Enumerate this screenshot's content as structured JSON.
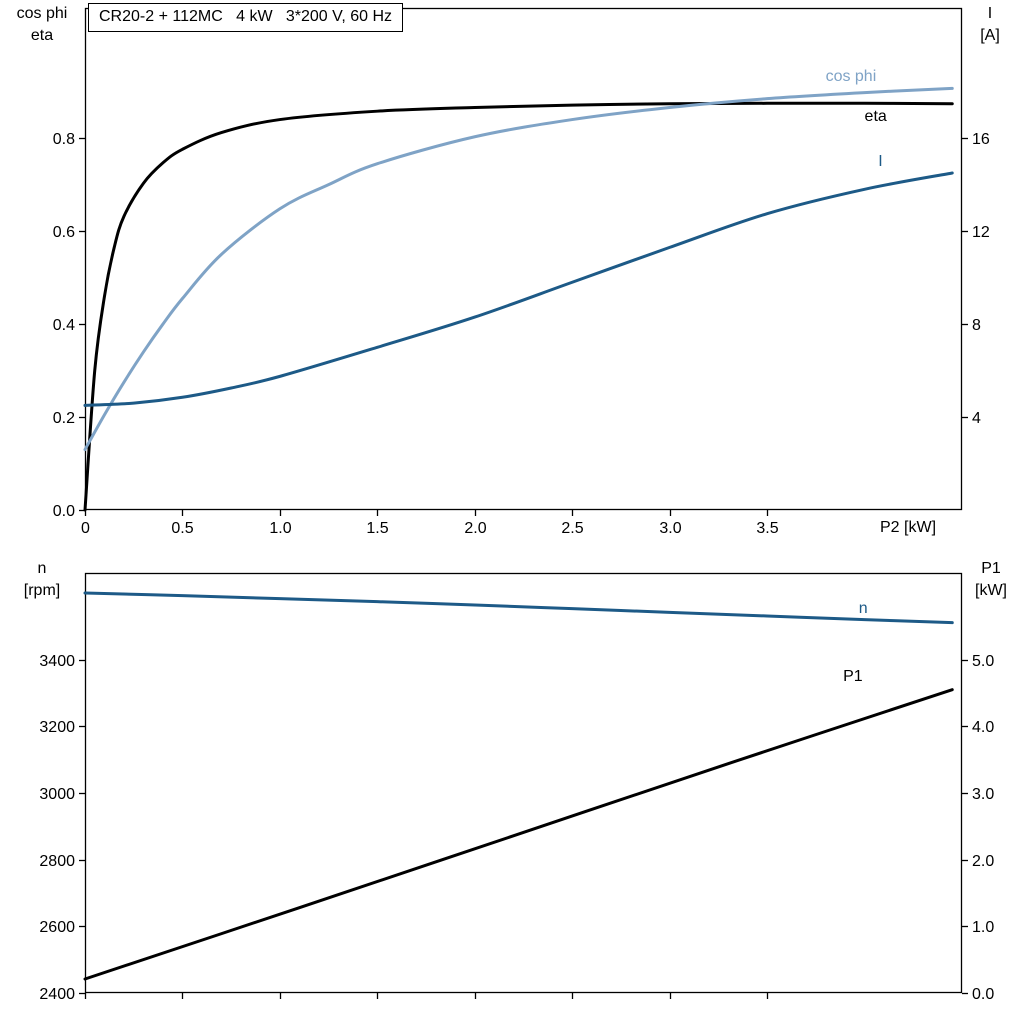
{
  "title_box": "CR20-2 + 112MC   4 kW   3*200 V, 60 Hz",
  "labels": {
    "top_left_1": "cos phi",
    "top_left_2": "eta",
    "top_right_1": "I",
    "top_right_2": "[A]",
    "x_axis": "P2 [kW]",
    "bottom_left_1": "n",
    "bottom_left_2": "[rpm]",
    "bottom_right_1": "P1",
    "bottom_right_2": "[kW]"
  },
  "colors": {
    "black": "#000000",
    "dark_blue": "#1d5a87",
    "light_blue": "#7fa3c6",
    "frame": "#000000"
  },
  "chart_data": [
    {
      "type": "line",
      "title": "CR20-2 + 112MC   4 kW   3*200 V, 60 Hz",
      "grid": false,
      "legend_position": "inline-curve-labels",
      "axes": {
        "x": {
          "label": "P2 [kW]",
          "min": 0,
          "max": 4.5,
          "ticks": [
            0,
            0.5,
            1.0,
            1.5,
            2.0,
            2.5,
            3.0,
            3.5
          ],
          "tick_labels": [
            "0",
            "0.5",
            "1.0",
            "1.5",
            "2.0",
            "2.5",
            "3.0",
            "3.5"
          ]
        },
        "y_left": {
          "label": "cos phi / eta",
          "min": 0,
          "max": 1.08,
          "ticks": [
            0,
            0.2,
            0.4,
            0.6,
            0.8
          ],
          "tick_labels": [
            "0.0",
            "0.2",
            "0.4",
            "0.6",
            "0.8"
          ]
        },
        "y_right": {
          "label": "I [A]",
          "min": 0,
          "max": 21.6,
          "ticks": [
            4,
            8,
            12,
            16
          ],
          "tick_labels": [
            "4",
            "8",
            "12",
            "16"
          ]
        }
      },
      "series": [
        {
          "name": "eta",
          "axis": "left",
          "color_key": "black",
          "points": [
            [
              0,
              0
            ],
            [
              0.05,
              0.3
            ],
            [
              0.1,
              0.46
            ],
            [
              0.15,
              0.565
            ],
            [
              0.2,
              0.632
            ],
            [
              0.3,
              0.703
            ],
            [
              0.4,
              0.747
            ],
            [
              0.5,
              0.776
            ],
            [
              0.7,
              0.812
            ],
            [
              1.0,
              0.84
            ],
            [
              1.5,
              0.858
            ],
            [
              2.0,
              0.866
            ],
            [
              2.5,
              0.871
            ],
            [
              3.0,
              0.874
            ],
            [
              3.5,
              0.875
            ],
            [
              4.0,
              0.875
            ],
            [
              4.45,
              0.874
            ]
          ]
        },
        {
          "name": "cos phi",
          "axis": "left",
          "color_key": "light_blue",
          "points": [
            [
              0,
              0.13
            ],
            [
              0.1,
              0.205
            ],
            [
              0.2,
              0.275
            ],
            [
              0.3,
              0.34
            ],
            [
              0.4,
              0.4
            ],
            [
              0.5,
              0.455
            ],
            [
              0.7,
              0.55
            ],
            [
              1.0,
              0.648
            ],
            [
              1.25,
              0.7
            ],
            [
              1.5,
              0.745
            ],
            [
              2.0,
              0.803
            ],
            [
              2.5,
              0.84
            ],
            [
              3.0,
              0.866
            ],
            [
              3.5,
              0.885
            ],
            [
              4.0,
              0.898
            ],
            [
              4.45,
              0.907
            ]
          ]
        },
        {
          "name": "I",
          "axis": "right",
          "color_key": "dark_blue",
          "points": [
            [
              0,
              4.5
            ],
            [
              0.25,
              4.6
            ],
            [
              0.5,
              4.85
            ],
            [
              0.75,
              5.25
            ],
            [
              1.0,
              5.75
            ],
            [
              1.5,
              7.0
            ],
            [
              2.0,
              8.3
            ],
            [
              2.5,
              9.8
            ],
            [
              3.0,
              11.3
            ],
            [
              3.5,
              12.75
            ],
            [
              4.0,
              13.8
            ],
            [
              4.45,
              14.5
            ]
          ]
        }
      ],
      "curve_labels": [
        {
          "text": "cos phi",
          "x": 3.8,
          "y": 0.923,
          "axis": "left",
          "color_key": "light_blue"
        },
        {
          "text": "eta",
          "x": 4.0,
          "y": 0.837,
          "axis": "left",
          "color_key": "black"
        },
        {
          "text": "I",
          "x": 4.07,
          "y": 14.8,
          "axis": "right",
          "color_key": "dark_blue"
        }
      ]
    },
    {
      "type": "line",
      "title": "",
      "grid": false,
      "legend_position": "inline-curve-labels",
      "axes": {
        "x": {
          "label": "",
          "min": 0,
          "max": 4.5,
          "ticks": [
            0,
            0.5,
            1.0,
            1.5,
            2.0,
            2.5,
            3.0,
            3.5
          ],
          "tick_labels": []
        },
        "y_left": {
          "label": "n [rpm]",
          "min": 2400,
          "max": 3660,
          "ticks": [
            2400,
            2600,
            2800,
            3000,
            3200,
            3400
          ],
          "tick_labels": [
            "2400",
            "2600",
            "2800",
            "3000",
            "3200",
            "3400"
          ]
        },
        "y_right": {
          "label": "P1 [kW]",
          "min": 0,
          "max": 6.3,
          "ticks": [
            0,
            1.0,
            2.0,
            3.0,
            4.0,
            5.0
          ],
          "tick_labels": [
            "0.0",
            "1.0",
            "2.0",
            "3.0",
            "4.0",
            "5.0"
          ]
        }
      },
      "series": [
        {
          "name": "n",
          "axis": "left",
          "color_key": "dark_blue",
          "points": [
            [
              0,
              3600
            ],
            [
              0.5,
              3592
            ],
            [
              1.0,
              3583
            ],
            [
              1.5,
              3574
            ],
            [
              2.0,
              3564
            ],
            [
              2.5,
              3553
            ],
            [
              3.0,
              3542
            ],
            [
              3.5,
              3531
            ],
            [
              4.0,
              3520
            ],
            [
              4.45,
              3511
            ]
          ]
        },
        {
          "name": "P1",
          "axis": "right",
          "color_key": "black",
          "points": [
            [
              0,
              0.21
            ],
            [
              1.1,
              1.28
            ],
            [
              2.2,
              2.36
            ],
            [
              3.3,
              3.44
            ],
            [
              4.45,
              4.55
            ]
          ]
        }
      ],
      "curve_labels": [
        {
          "text": "n",
          "x": 3.97,
          "y": 3540,
          "axis": "left",
          "color_key": "dark_blue"
        },
        {
          "text": "P1",
          "x": 3.89,
          "y": 4.68,
          "axis": "right",
          "color_key": "black"
        }
      ]
    }
  ]
}
